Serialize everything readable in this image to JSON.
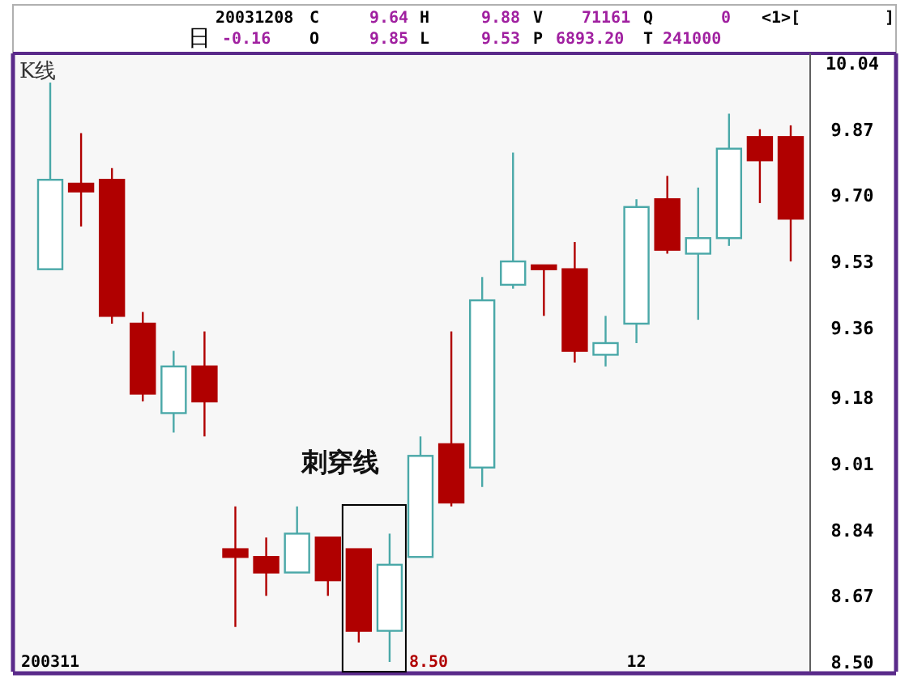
{
  "chart_data": {
    "type": "candlestick",
    "title": "K线",
    "categories": [
      "200311",
      null,
      null,
      null,
      null,
      null,
      null,
      null,
      null,
      null,
      null,
      null,
      null,
      null,
      null,
      null,
      null,
      null,
      null,
      "12",
      null,
      null,
      null,
      null,
      null
    ],
    "ohlc": [
      [
        9.51,
        9.99,
        9.51,
        9.74
      ],
      [
        9.73,
        9.86,
        9.62,
        9.71
      ],
      [
        9.74,
        9.77,
        9.37,
        9.39
      ],
      [
        9.37,
        9.4,
        9.17,
        9.19
      ],
      [
        9.14,
        9.3,
        9.09,
        9.26
      ],
      [
        9.26,
        9.35,
        9.08,
        9.17
      ],
      [
        8.79,
        8.9,
        8.59,
        8.77
      ],
      [
        8.77,
        8.82,
        8.67,
        8.73
      ],
      [
        8.73,
        8.9,
        8.73,
        8.83
      ],
      [
        8.82,
        8.82,
        8.67,
        8.71
      ],
      [
        8.79,
        8.79,
        8.55,
        8.58
      ],
      [
        8.58,
        8.83,
        8.5,
        8.75
      ],
      [
        8.77,
        9.08,
        8.77,
        9.03
      ],
      [
        9.06,
        9.35,
        8.9,
        8.91
      ],
      [
        9.0,
        9.49,
        8.95,
        9.43
      ],
      [
        9.47,
        9.81,
        9.46,
        9.53
      ],
      [
        9.52,
        9.52,
        9.39,
        9.51
      ],
      [
        9.51,
        9.58,
        9.27,
        9.3
      ],
      [
        9.29,
        9.39,
        9.26,
        9.32
      ],
      [
        9.37,
        9.69,
        9.32,
        9.67
      ],
      [
        9.69,
        9.75,
        9.55,
        9.56
      ],
      [
        9.55,
        9.72,
        9.38,
        9.59
      ],
      [
        9.59,
        9.91,
        9.57,
        9.82
      ],
      [
        9.85,
        9.87,
        9.68,
        9.79
      ],
      [
        9.85,
        9.88,
        9.53,
        9.64
      ]
    ],
    "colors": [
      "#4aa8a8",
      "#b00000",
      "#b00000",
      "#b00000",
      "#4aa8a8",
      "#b00000",
      "#b00000",
      "#b00000",
      "#4aa8a8",
      "#b00000",
      "#b00000",
      "#4aa8a8",
      "#4aa8a8",
      "#b00000",
      "#4aa8a8",
      "#4aa8a8",
      "#b00000",
      "#b00000",
      "#4aa8a8",
      "#4aa8a8",
      "#b00000",
      "#4aa8a8",
      "#4aa8a8",
      "#b00000",
      "#b00000"
    ],
    "ylim": [
      8.475,
      10.065
    ],
    "yticks": [
      10.04,
      9.87,
      {
        "value": 9.7,
        "label": "9.70"
      },
      9.53,
      9.36,
      9.18,
      9.01,
      8.84,
      8.67,
      {
        "value": 8.5,
        "label": "8.50"
      }
    ],
    "grid": false,
    "annotations": [
      "20031208",
      "C",
      "9.64",
      "H",
      "9.88",
      "V",
      "71161",
      "Q",
      "0",
      "<1>[",
      "]",
      "日",
      "-0.16",
      "O",
      "9.85",
      "L",
      "9.53",
      "P",
      "6893.20",
      "T",
      "241000",
      "刺穿线",
      "8.50"
    ]
  }
}
